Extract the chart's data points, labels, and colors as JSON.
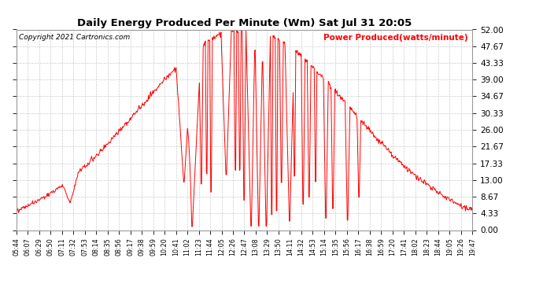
{
  "title": "Daily Energy Produced Per Minute (Wm) Sat Jul 31 20:05",
  "copyright": "Copyright 2021 Cartronics.com",
  "legend_label": "Power Produced(watts/minute)",
  "ymax": 52.0,
  "ymin": 0.0,
  "yticks": [
    0.0,
    4.33,
    8.67,
    13.0,
    17.33,
    21.67,
    26.0,
    30.33,
    34.67,
    39.0,
    43.33,
    47.67,
    52.0
  ],
  "line_color": "#FF0000",
  "background_color": "#FFFFFF",
  "grid_color": "#CCCCCC",
  "title_color": "#000000",
  "copyright_color": "#000000",
  "legend_color": "#FF0000",
  "xtick_labels": [
    "05:44",
    "06:07",
    "06:29",
    "06:50",
    "07:11",
    "07:32",
    "07:53",
    "08:14",
    "08:35",
    "08:56",
    "09:17",
    "09:38",
    "09:59",
    "10:20",
    "10:41",
    "11:02",
    "11:23",
    "11:44",
    "12:05",
    "12:26",
    "12:47",
    "13:08",
    "13:29",
    "13:50",
    "14:11",
    "14:32",
    "14:53",
    "15:14",
    "15:35",
    "15:56",
    "16:17",
    "16:38",
    "16:59",
    "17:20",
    "17:41",
    "18:02",
    "18:23",
    "18:44",
    "19:05",
    "19:26",
    "19:47"
  ]
}
